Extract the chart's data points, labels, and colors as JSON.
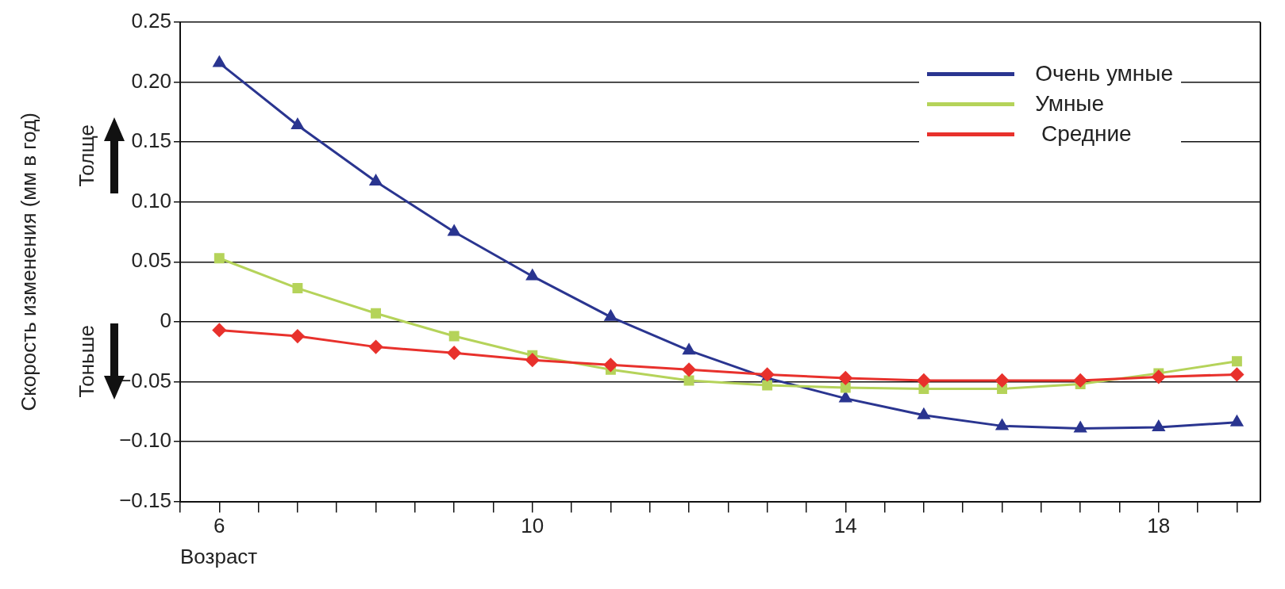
{
  "chart_data": {
    "type": "line",
    "xlabel": "Возраст",
    "ylabel": "Скорость изменения (мм в год)",
    "x": [
      6,
      7,
      8,
      9,
      10,
      11,
      12,
      13,
      14,
      15,
      16,
      17,
      18,
      19
    ],
    "xlim": [
      5.5,
      19.3
    ],
    "xticks": [
      {
        "value": 5.5,
        "label": null
      },
      6,
      {
        "value": 6.5,
        "label": null
      },
      {
        "value": 7,
        "label": null
      },
      {
        "value": 7.5,
        "label": null
      },
      {
        "value": 8,
        "label": null
      },
      {
        "value": 8.5,
        "label": null
      },
      {
        "value": 9,
        "label": null
      },
      {
        "value": 9.5,
        "label": null
      },
      10,
      {
        "value": 10.5,
        "label": null
      },
      {
        "value": 11,
        "label": null
      },
      {
        "value": 11.5,
        "label": null
      },
      {
        "value": 12,
        "label": null
      },
      {
        "value": 12.5,
        "label": null
      },
      {
        "value": 13,
        "label": null
      },
      {
        "value": 13.5,
        "label": null
      },
      14,
      {
        "value": 14.5,
        "label": null
      },
      {
        "value": 15,
        "label": null
      },
      {
        "value": 15.5,
        "label": null
      },
      {
        "value": 16,
        "label": null
      },
      {
        "value": 16.5,
        "label": null
      },
      {
        "value": 17,
        "label": null
      },
      {
        "value": 17.5,
        "label": null
      },
      18,
      {
        "value": 18.5,
        "label": null
      },
      {
        "value": 19,
        "label": null
      }
    ],
    "ylim": [
      -0.15,
      0.25
    ],
    "yticks": [
      {
        "value": -0.15,
        "label": "−0.15"
      },
      {
        "value": -0.1,
        "label": "−0.10"
      },
      {
        "value": -0.05,
        "label": "−0.05"
      },
      {
        "value": 0,
        "label": "0"
      },
      {
        "value": 0.05,
        "label": "0.05"
      },
      {
        "value": 0.1,
        "label": "0.10"
      },
      {
        "value": 0.15,
        "label": "0.15"
      },
      {
        "value": 0.2,
        "label": "0.20"
      },
      {
        "value": 0.25,
        "label": "0.25"
      }
    ],
    "grid": "y",
    "legend": "top right",
    "line_style": "solid",
    "annotations": [
      "Толще",
      "Тоньше"
    ],
    "series": [
      {
        "name": "Очень умные",
        "color": "#2a3590",
        "marker": "triangle",
        "values": [
          0.216,
          0.164,
          0.117,
          0.075,
          0.038,
          0.004,
          -0.024,
          -0.047,
          -0.064,
          -0.078,
          -0.087,
          -0.089,
          -0.088,
          -0.084
        ]
      },
      {
        "name": "Умные",
        "color": "#b5d35a",
        "marker": "square",
        "values": [
          0.053,
          0.028,
          0.007,
          -0.012,
          -0.028,
          -0.04,
          -0.049,
          -0.053,
          -0.055,
          -0.056,
          -0.056,
          -0.052,
          -0.043,
          -0.033
        ]
      },
      {
        "name": " Средние",
        "color": "#e8312c",
        "marker": "diamond",
        "values": [
          -0.007,
          -0.012,
          -0.021,
          -0.026,
          -0.032,
          -0.036,
          -0.04,
          -0.044,
          -0.047,
          -0.049,
          -0.049,
          -0.049,
          -0.046,
          -0.044
        ]
      }
    ]
  }
}
